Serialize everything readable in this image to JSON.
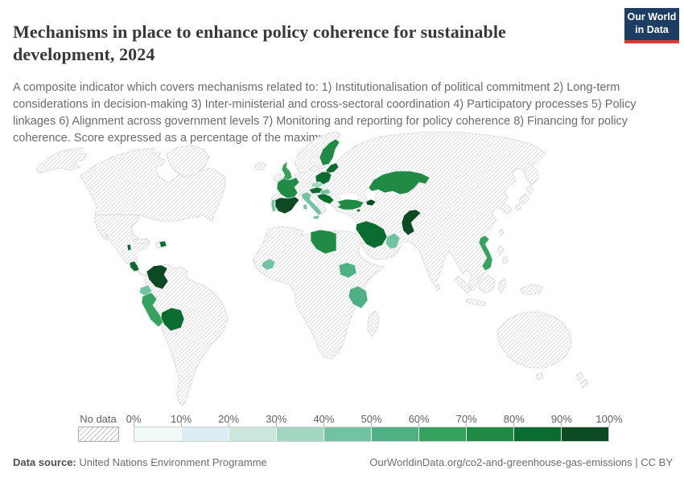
{
  "header": {
    "title": "Mechanisms in place to enhance policy coherence for sustainable development, 2024",
    "subtitle": "A composite indicator which covers mechanisms related to: 1) Institutionalisation of political commitment 2) Long-term considerations in decision-making 3) Inter-ministerial and cross-sectoral coordination 4) Participatory processes 5) Policy linkages 6) Alignment across government levels 7) Monitoring and reporting for policy coherence 8) Financing for policy coherence. Score expressed as a percentage of the maximum."
  },
  "logo": {
    "line1": "Our World",
    "line2": "in Data",
    "bg": "#1d3d63",
    "accent_bar": "#d93a34"
  },
  "legend": {
    "no_data_label": "No data",
    "tick_labels": [
      "0%",
      "10%",
      "20%",
      "30%",
      "40%",
      "50%",
      "60%",
      "70%",
      "80%",
      "90%",
      "100%"
    ]
  },
  "chart_data": {
    "type": "choropleth",
    "title": "Mechanisms in place to enhance policy coherence for sustainable development",
    "year": "2024",
    "unit": "Score as % of maximum",
    "legend_position": "bottom",
    "no_data_style": "diagonal-hatch",
    "bins": {
      "min": 0,
      "max": 100,
      "step": 10,
      "colors": [
        "#f0f9f6",
        "#dcedf3",
        "#c9e7da",
        "#a2d6c0",
        "#72c3a2",
        "#4fb183",
        "#35a260",
        "#1f8b45",
        "#0a6d2f",
        "#0b4a22"
      ]
    },
    "countries": [
      {
        "id": "spain",
        "name": "Spain",
        "bin": "90–100%",
        "color": "#0b4a22"
      },
      {
        "id": "portugal",
        "name": "Portugal",
        "bin": "40–50%",
        "color": "#72c3a2"
      },
      {
        "id": "france",
        "name": "France",
        "bin": "70–80%",
        "color": "#1f8b45"
      },
      {
        "id": "united-kingdom",
        "name": "United Kingdom",
        "bin": "60–70%",
        "color": "#35a260"
      },
      {
        "id": "finland",
        "name": "Finland",
        "bin": "70–80%",
        "color": "#1f8b45"
      },
      {
        "id": "estonia-latvia",
        "name": "Estonia & Latvia",
        "bin": "80–90%",
        "color": "#0a6d2f"
      },
      {
        "id": "poland",
        "name": "Poland",
        "bin": "80–90%",
        "color": "#0a6d2f"
      },
      {
        "id": "czechia",
        "name": "Czechia",
        "bin": "30–40%",
        "color": "#a2d6c0"
      },
      {
        "id": "austria",
        "name": "Austria",
        "bin": "80–90%",
        "color": "#0a6d2f"
      },
      {
        "id": "hungary",
        "name": "Hungary",
        "bin": "40–50%",
        "color": "#72c3a2"
      },
      {
        "id": "italy",
        "name": "Italy",
        "bin": "40–50%",
        "color": "#72c3a2"
      },
      {
        "id": "croatia-serbia",
        "name": "Croatia & Serbia",
        "bin": "80–90%",
        "color": "#0a6d2f"
      },
      {
        "id": "turkey",
        "name": "Turkey",
        "bin": "70–80%",
        "color": "#1f8b45"
      },
      {
        "id": "cyprus",
        "name": "Cyprus",
        "bin": "80–90%",
        "color": "#0a6d2f"
      },
      {
        "id": "azerbaijan",
        "name": "Azerbaijan",
        "bin": "90–100%",
        "color": "#0b4a22"
      },
      {
        "id": "kazakhstan",
        "name": "Kazakhstan",
        "bin": "70–80%",
        "color": "#1f8b45"
      },
      {
        "id": "saudi-arabia",
        "name": "Saudi Arabia",
        "bin": "80–90%",
        "color": "#0a6d2f"
      },
      {
        "id": "oman",
        "name": "Oman",
        "bin": "40–50%",
        "color": "#72c3a2"
      },
      {
        "id": "pakistan",
        "name": "Pakistan",
        "bin": "90–100%",
        "color": "#0b4a22"
      },
      {
        "id": "vietnam",
        "name": "Vietnam",
        "bin": "60–70%",
        "color": "#35a260"
      },
      {
        "id": "libya",
        "name": "Libya",
        "bin": "70–80%",
        "color": "#1f8b45"
      },
      {
        "id": "guinea",
        "name": "Guinea",
        "bin": "40–50%",
        "color": "#72c3a2"
      },
      {
        "id": "south-sudan",
        "name": "South Sudan",
        "bin": "50–60%",
        "color": "#4fb183"
      },
      {
        "id": "tanzania",
        "name": "Tanzania",
        "bin": "50–60%",
        "color": "#4fb183"
      },
      {
        "id": "belize",
        "name": "Belize",
        "bin": "80–90%",
        "color": "#0a6d2f"
      },
      {
        "id": "costa-rica",
        "name": "Costa Rica",
        "bin": "80–90%",
        "color": "#0a6d2f"
      },
      {
        "id": "dominican-republic",
        "name": "Dominican Republic",
        "bin": "80–90%",
        "color": "#0a6d2f"
      },
      {
        "id": "colombia",
        "name": "Colombia",
        "bin": "90–100%",
        "color": "#0b4a22"
      },
      {
        "id": "ecuador",
        "name": "Ecuador",
        "bin": "40–50%",
        "color": "#72c3a2"
      },
      {
        "id": "peru",
        "name": "Peru",
        "bin": "60–70%",
        "color": "#35a260"
      },
      {
        "id": "bolivia",
        "name": "Bolivia",
        "bin": "80–90%",
        "color": "#0a6d2f"
      }
    ]
  },
  "footer": {
    "source_label": "Data source:",
    "source_value": "United Nations Environment Programme",
    "attribution": "OurWorldinData.org/co2-and-greenhouse-gas-emissions | CC BY"
  }
}
